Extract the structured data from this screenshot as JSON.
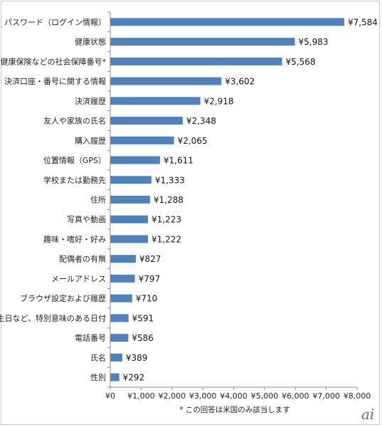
{
  "chart_data": {
    "type": "bar",
    "orientation": "horizontal",
    "categories": [
      "パスワード（ログイン情報）",
      "健康状態",
      "健康保険などの社会保障番号*",
      "決済口座・番号に関する情報",
      "決済履歴",
      "友人や家族の氏名",
      "購入履歴",
      "位置情報（GPS）",
      "学校または勤務先",
      "住所",
      "写真や動画",
      "趣味・嗜好・好み",
      "配偶者の有無",
      "メールアドレス",
      "ブラウザ設定および履歴",
      "誕生日など、特別意味のある日付",
      "電話番号",
      "氏名",
      "性別"
    ],
    "values": [
      7584,
      5983,
      5568,
      3602,
      2918,
      2348,
      2065,
      1611,
      1333,
      1288,
      1223,
      1222,
      827,
      797,
      710,
      591,
      586,
      389,
      292
    ],
    "value_labels": [
      "¥7,584",
      "¥5,983",
      "¥5,568",
      "¥3,602",
      "¥2,918",
      "¥2,348",
      "¥2,065",
      "¥1,611",
      "¥1,333",
      "¥1,288",
      "¥1,223",
      "¥1,222",
      "¥827",
      "¥797",
      "¥710",
      "¥591",
      "¥586",
      "¥389",
      "¥292"
    ],
    "xlim": [
      0,
      8000
    ],
    "x_ticks": [
      0,
      1000,
      2000,
      3000,
      4000,
      5000,
      6000,
      7000,
      8000
    ],
    "x_tick_labels": [
      "¥0",
      "¥1,000",
      "¥2,000",
      "¥3,000",
      "¥4,000",
      "¥5,000",
      "¥6,000",
      "¥7,000",
      "¥8,000"
    ],
    "note": "* この回答は米国のみ該当します",
    "bar_color": "#4f81bd",
    "grid": false,
    "legend": "none"
  },
  "watermark": "ai"
}
